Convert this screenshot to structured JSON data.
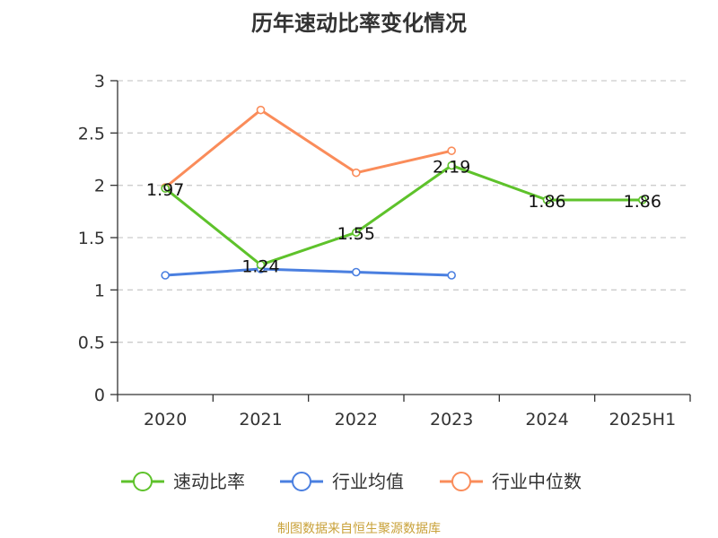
{
  "chart_data": {
    "type": "line",
    "title": "历年速动比率变化情况",
    "categories": [
      "2020",
      "2021",
      "2022",
      "2023",
      "2024",
      "2025H1"
    ],
    "ylim": [
      0,
      3
    ],
    "yticks": [
      "0",
      "0.5",
      "1",
      "1.5",
      "2",
      "2.5",
      "3"
    ],
    "grid": "horizontal dashed",
    "legend_position": "bottom",
    "series": [
      {
        "name": "速动比率",
        "color": "#5ec22b",
        "values": [
          1.97,
          1.24,
          1.55,
          2.19,
          1.86,
          1.86
        ],
        "labels": [
          "1.97",
          "1.24",
          "1.55",
          "2.19",
          "1.86",
          "1.86"
        ]
      },
      {
        "name": "行业均值",
        "color": "#4a7fe0",
        "values": [
          1.14,
          1.2,
          1.17,
          1.14,
          null,
          null
        ]
      },
      {
        "name": "行业中位数",
        "color": "#fa8c5a",
        "values": [
          1.98,
          2.72,
          2.12,
          2.33,
          null,
          null
        ]
      }
    ]
  },
  "source": {
    "text": "制图数据来自恒生聚源数据库",
    "color": "#c9a23a"
  }
}
